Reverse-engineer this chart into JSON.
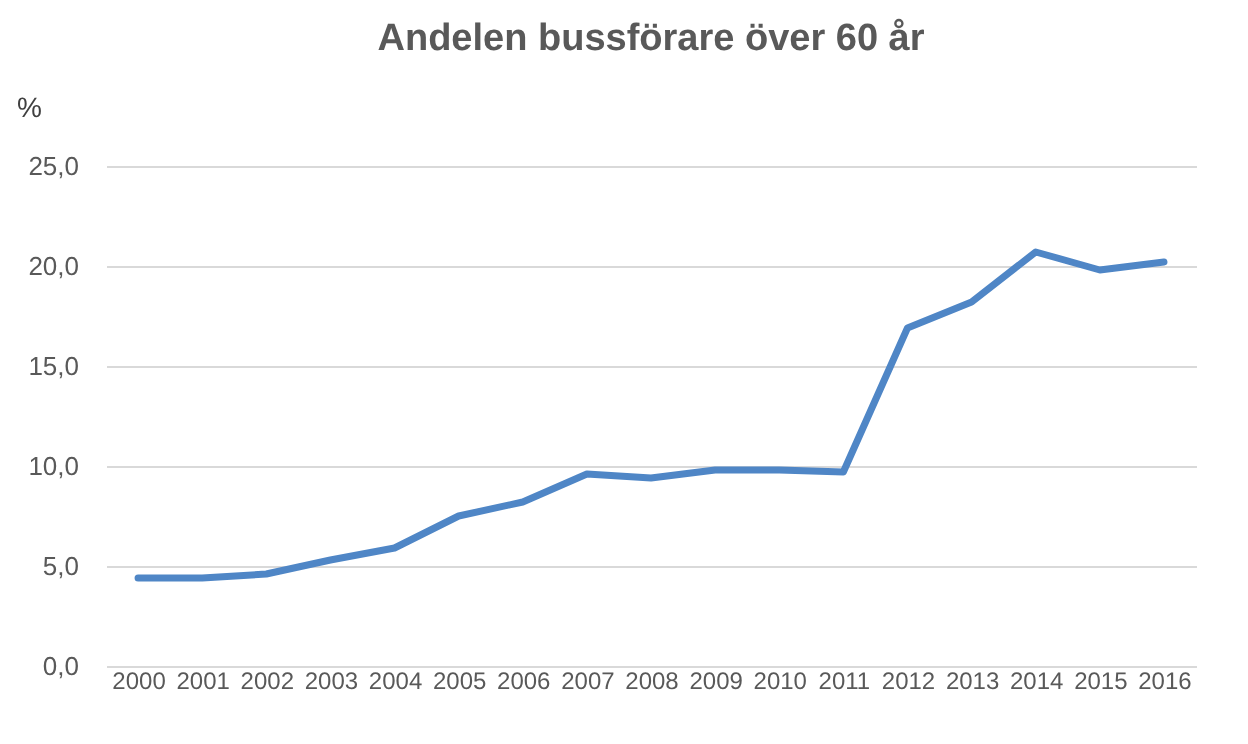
{
  "chart_data": {
    "type": "line",
    "title": "Andelen bussförare över 60 år",
    "ylabel": "%",
    "categories": [
      "2000",
      "2001",
      "2002",
      "2003",
      "2004",
      "2005",
      "2006",
      "2007",
      "2008",
      "2009",
      "2010",
      "2011",
      "2012",
      "2013",
      "2014",
      "2015",
      "2016"
    ],
    "series": [
      {
        "color": "#4f86c6",
        "values": [
          4.4,
          4.4,
          4.6,
          5.3,
          5.9,
          7.5,
          8.2,
          9.6,
          9.4,
          9.8,
          9.8,
          9.7,
          16.9,
          18.2,
          20.7,
          19.8,
          20.2
        ]
      }
    ],
    "ylim": [
      0,
      25
    ],
    "yticks": [
      {
        "value": 0,
        "label": "0,0"
      },
      {
        "value": 5,
        "label": "5,0"
      },
      {
        "value": 10,
        "label": "10,0"
      },
      {
        "value": 15,
        "label": "15,0"
      },
      {
        "value": 20,
        "label": "20,0"
      },
      {
        "value": 25,
        "label": "25,0"
      }
    ],
    "grid": "y",
    "legend": false,
    "marker": "none",
    "line_style": "solid"
  }
}
